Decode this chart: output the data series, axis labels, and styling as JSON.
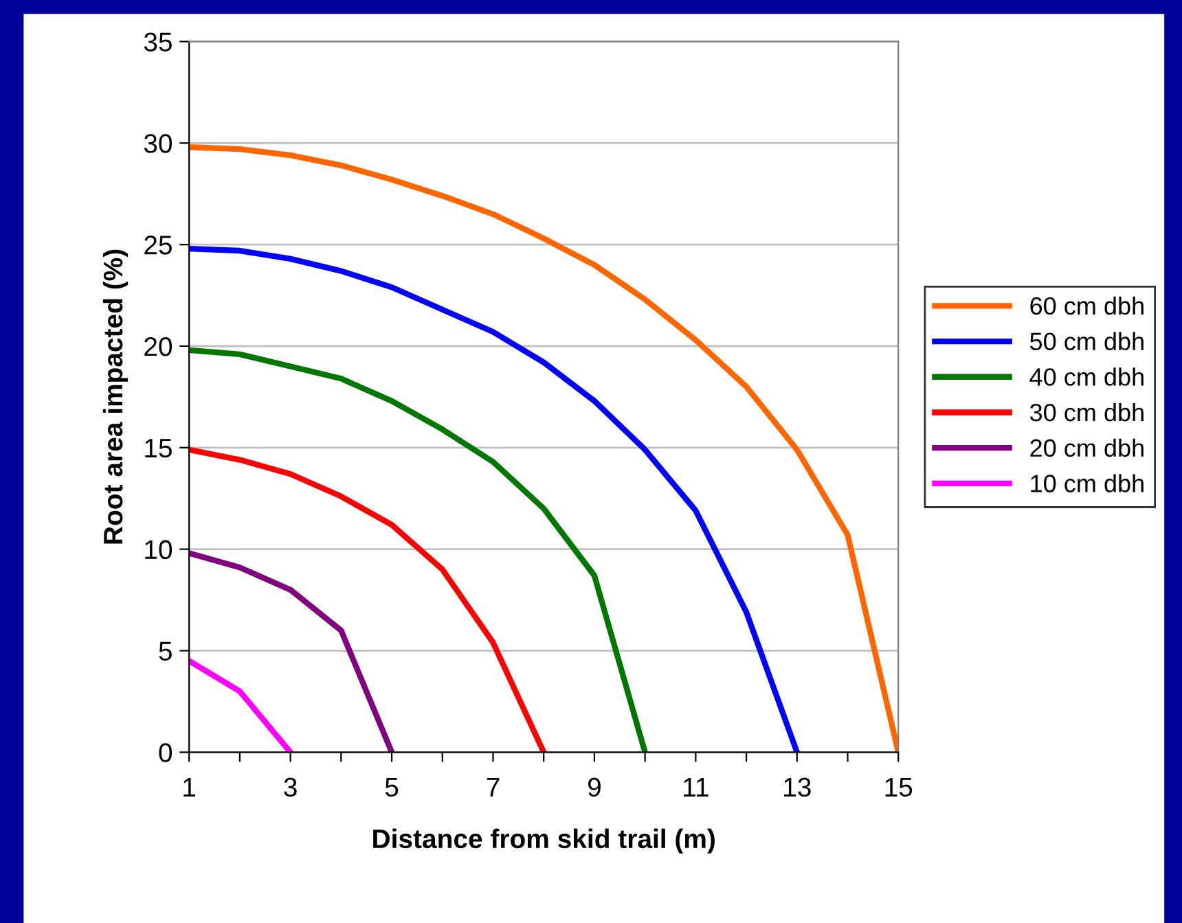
{
  "chart_data": {
    "type": "line",
    "xlabel": "Distance from skid trail (m)",
    "ylabel": "Root area impacted (%)",
    "xlim": [
      1,
      15
    ],
    "xticks": [
      1,
      {
        "value": 2,
        "label": null
      },
      3,
      {
        "value": 4,
        "label": null
      },
      5,
      {
        "value": 6,
        "label": null
      },
      7,
      {
        "value": 8,
        "label": null
      },
      9,
      {
        "value": 10,
        "label": null
      },
      11,
      {
        "value": 12,
        "label": null
      },
      13,
      {
        "value": 14,
        "label": null
      },
      15
    ],
    "ylim": [
      0,
      35
    ],
    "yticks": [
      0,
      5,
      10,
      15,
      20,
      25,
      30,
      35
    ],
    "grid": "y",
    "legend": "right",
    "marker": "none",
    "line_style": "solid",
    "series": [
      {
        "name": "60 cm dbh",
        "color": "#ff6600",
        "x": [
          1,
          2,
          3,
          4,
          5,
          6,
          7,
          8,
          9,
          10,
          11,
          12,
          13,
          14,
          15
        ],
        "values": [
          29.8,
          29.7,
          29.4,
          28.9,
          28.2,
          27.4,
          26.5,
          25.3,
          24.0,
          22.3,
          20.3,
          18.0,
          14.9,
          10.7,
          0
        ]
      },
      {
        "name": "50 cm dbh",
        "color": "#0000ff",
        "x": [
          1,
          2,
          3,
          4,
          5,
          6,
          7,
          8,
          9,
          10,
          11,
          12,
          13
        ],
        "values": [
          24.8,
          24.7,
          24.3,
          23.7,
          22.9,
          21.8,
          20.7,
          19.2,
          17.3,
          14.9,
          11.9,
          6.9,
          0
        ]
      },
      {
        "name": "40 cm dbh",
        "color": "#007700",
        "x": [
          1,
          2,
          3,
          4,
          5,
          6,
          7,
          8,
          9,
          10
        ],
        "values": [
          19.8,
          19.6,
          19.0,
          18.4,
          17.3,
          15.9,
          14.3,
          12.0,
          8.7,
          0
        ]
      },
      {
        "name": "30 cm dbh",
        "color": "#ff0000",
        "x": [
          1,
          2,
          3,
          4,
          5,
          6,
          7,
          8
        ],
        "values": [
          14.9,
          14.4,
          13.7,
          12.6,
          11.2,
          9.0,
          5.4,
          0
        ]
      },
      {
        "name": "20 cm dbh",
        "color": "#800080",
        "x": [
          1,
          2,
          3,
          4,
          5
        ],
        "values": [
          9.8,
          9.1,
          8.0,
          6.0,
          0
        ]
      },
      {
        "name": "10 cm dbh",
        "color": "#ff00ff",
        "x": [
          1,
          2,
          3
        ],
        "values": [
          4.5,
          3.0,
          0
        ]
      }
    ]
  }
}
